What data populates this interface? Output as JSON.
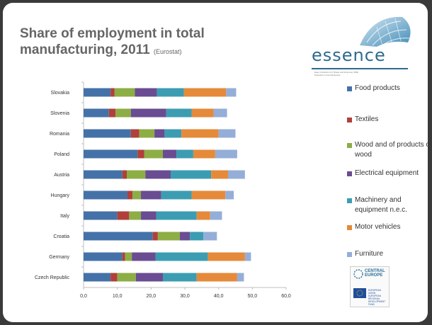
{
  "slide": {
    "title_main": "Share of employment in total manufacturing, 2011",
    "title_source": "(Eurostat)"
  },
  "logo": {
    "word": "essence",
    "tagline": "Easy Interaction for Shape and Empower SME Networks in Central Europe"
  },
  "footer_logo": {
    "program": "CENTRAL EUROPE",
    "eu_line1": "EUROPEAN UNION",
    "eu_line2": "EUROPEAN REGIONAL DEVELOPMENT FUND"
  },
  "colors": {
    "food": "#4472a8",
    "textiles": "#b0403a",
    "wood": "#8cae45",
    "electrical": "#6a4c92",
    "machinery": "#3c9db2",
    "motor": "#e58a3a",
    "furniture": "#94aed8"
  },
  "chart_data": {
    "type": "bar",
    "orientation": "horizontal",
    "stacked": true,
    "title": "Share of employment in total manufacturing, 2011",
    "xlim": [
      0,
      60
    ],
    "xticks": [
      "0,0",
      "10,0",
      "20,0",
      "30,0",
      "40,0",
      "50,0",
      "60,0"
    ],
    "categories": [
      "Slovakia",
      "Slovenia",
      "Romania",
      "Poland",
      "Austria",
      "Hungary",
      "Italy",
      "Croatia",
      "Germany",
      "Czech Republic"
    ],
    "series": [
      {
        "name": "Food products",
        "color": "#4472a8",
        "values": [
          8.0,
          7.5,
          14.0,
          16.0,
          11.5,
          13.0,
          10.0,
          20.5,
          11.5,
          8.0
        ]
      },
      {
        "name": "Textiles",
        "color": "#b0403a",
        "values": [
          1.2,
          2.0,
          2.5,
          2.0,
          1.3,
          1.5,
          3.5,
          1.5,
          0.8,
          2.0
        ]
      },
      {
        "name": "Wood and of products of wood",
        "color": "#8cae45",
        "values": [
          6.0,
          4.5,
          4.5,
          5.5,
          5.5,
          2.5,
          3.5,
          6.5,
          2.0,
          5.5
        ]
      },
      {
        "name": "Electrical equipment",
        "color": "#6a4c92",
        "values": [
          6.5,
          10.5,
          3.0,
          4.0,
          7.5,
          6.0,
          4.5,
          3.0,
          7.0,
          8.0
        ]
      },
      {
        "name": "Machinery and equipment n.e.c.",
        "color": "#3c9db2",
        "values": [
          8.0,
          7.5,
          5.0,
          5.0,
          12.0,
          9.0,
          12.0,
          4.0,
          15.5,
          10.0
        ]
      },
      {
        "name": "Motor vehicles",
        "color": "#e58a3a",
        "values": [
          12.5,
          6.5,
          11.0,
          6.5,
          5.0,
          10.0,
          4.0,
          0.0,
          11.0,
          12.0
        ]
      },
      {
        "name": "Furniture",
        "color": "#94aed8",
        "values": [
          3.0,
          4.0,
          5.0,
          6.5,
          5.0,
          2.5,
          3.5,
          4.0,
          1.8,
          2.0
        ]
      }
    ]
  }
}
